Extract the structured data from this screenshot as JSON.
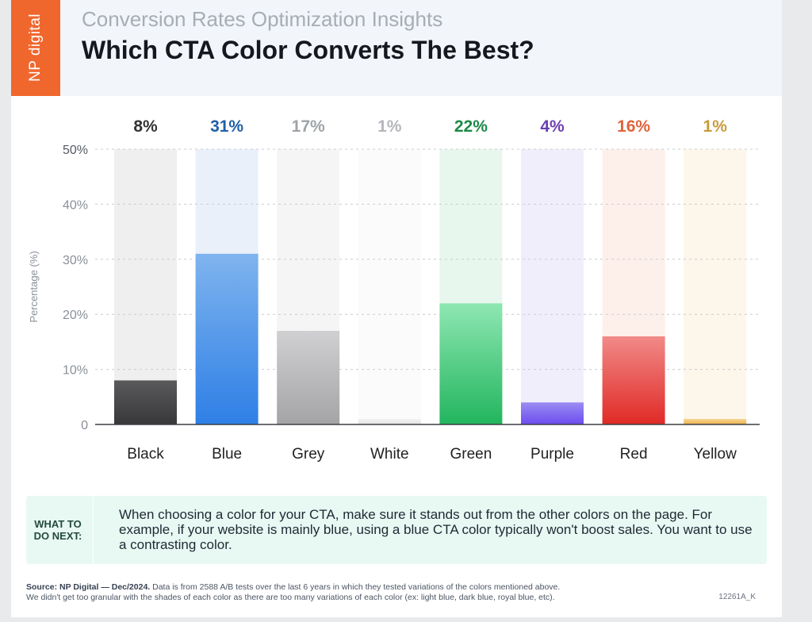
{
  "header": {
    "logo": "NP digital",
    "supertitle": "Conversion Rates Optimization Insights",
    "title": "Which CTA Color Converts The Best?"
  },
  "chart_data": {
    "type": "bar",
    "categories": [
      "Black",
      "Blue",
      "Grey",
      "White",
      "Green",
      "Purple",
      "Red",
      "Yellow"
    ],
    "values": [
      8,
      31,
      17,
      1,
      22,
      4,
      16,
      1
    ],
    "value_labels": [
      "8%",
      "31%",
      "17%",
      "1%",
      "22%",
      "4%",
      "16%",
      "1%"
    ],
    "ylabel": "Percentage (%)",
    "ylim": [
      0,
      50
    ],
    "yticks": [
      {
        "value": 0,
        "label": "0"
      },
      {
        "value": 10,
        "label": "10%"
      },
      {
        "value": 20,
        "label": "20%"
      },
      {
        "value": 30,
        "label": "30%"
      },
      {
        "value": 40,
        "label": "40%"
      },
      {
        "value": 50,
        "label": "50%"
      }
    ],
    "grid": true,
    "colors": {
      "fill_top": [
        "#5a5a5c",
        "#7fb4ee",
        "#d0d0d2",
        "#f2f2f2",
        "#8ee7b2",
        "#9b8df2",
        "#f18a88",
        "#f6d590"
      ],
      "fill_bottom": [
        "#38383a",
        "#2e7fe6",
        "#a4a4a6",
        "#e4e4e4",
        "#22b55e",
        "#6a4bf0",
        "#e02a26",
        "#edb352"
      ],
      "track": [
        "#efefef",
        "#e9f0fa",
        "#f5f5f5",
        "#fbfbfb",
        "#e8f7ee",
        "#f1eefc",
        "#fdf0ea",
        "#fdf6ea"
      ],
      "label": [
        "#333333",
        "#1f5fa8",
        "#9ea3a8",
        "#b3b6ba",
        "#1c8a47",
        "#6a3fb0",
        "#e0623a",
        "#c99a3a"
      ]
    }
  },
  "callout": {
    "heading": "WHAT TO DO NEXT:",
    "text": "When choosing a color for your CTA, make sure it stands out from the other colors on the page. For example, if your website is mainly blue, using a blue CTA color typically won't boost sales. You want to use a contrasting color."
  },
  "footnote": {
    "source_label": "Source:",
    "source": "NP Digital — Dec/2024.",
    "line1": "Data is from 2588 A/B tests over the last 6 years in which they tested variations of the colors mentioned above.",
    "line2": "We didn't get too granular with the shades of each color as there are too many variations of each color (ex: light blue, dark blue, royal blue, etc).",
    "code": "12261A_K"
  }
}
